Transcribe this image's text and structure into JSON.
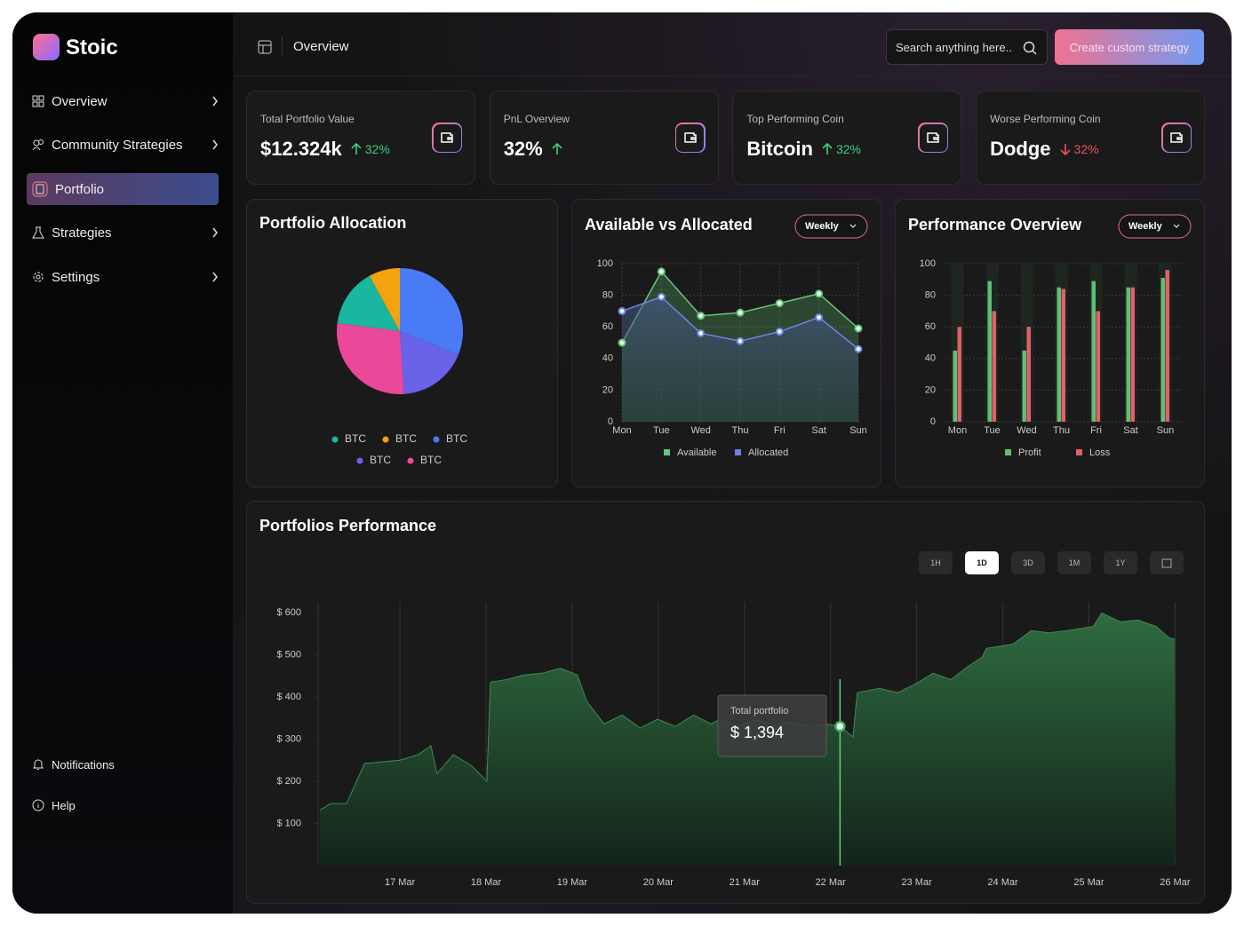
{
  "sidebar": {
    "brand": "Stoic",
    "nav": [
      "Overview",
      "Community Strategies",
      "Portfolio",
      "Strategies",
      "Settings"
    ],
    "bottom": [
      "Notifications",
      "Help"
    ]
  },
  "header": {
    "title": "Overview",
    "search": "Search anything here..",
    "button": "Create custom strategy"
  },
  "stats": [
    {
      "label": "Total Portfolio Value",
      "value": "$12.324k",
      "change": "32%"
    },
    {
      "label": "PnL Overview",
      "value": "32%"
    },
    {
      "label": "Top Performing Coin",
      "value": "Bitcoin",
      "change": "32%"
    },
    {
      "label": "Worse Performing Coin",
      "value": "Dodge",
      "change": "32%"
    }
  ],
  "performance_controls": [
    "1H",
    "1D",
    "3D",
    "1M",
    "1Y"
  ],
  "chart_data": [
    {
      "type": "pie",
      "title": "Portfolio Allocation",
      "categories": [
        "BTC",
        "BTC",
        "BTC",
        "BTC",
        "BTC"
      ],
      "values": [
        15,
        8,
        31,
        18,
        28
      ],
      "colors": [
        "#19b6a0",
        "#f5a20f",
        "#4a7bf7",
        "#6a63ea",
        "#ec4899"
      ]
    },
    {
      "type": "line",
      "title": "Available vs Allocated",
      "filter": "Weekly",
      "categories": [
        "Mon",
        "Tue",
        "Wed",
        "Thu",
        "Fri",
        "Sat",
        "Sun"
      ],
      "series": [
        {
          "name": "Available",
          "color": "#6cc47a",
          "values": [
            50,
            95,
            67,
            69,
            75,
            81,
            59
          ]
        },
        {
          "name": "Allocated",
          "color": "#7080e8",
          "values": [
            70,
            79,
            56,
            51,
            57,
            66,
            46
          ]
        }
      ],
      "ylim": [
        0,
        100
      ],
      "yticks": [
        0,
        20,
        40,
        60,
        80,
        100
      ],
      "grid": true
    },
    {
      "type": "bar",
      "title": "Performance Overview",
      "filter": "Weekly",
      "categories": [
        "Mon",
        "Tue",
        "Wed",
        "Thu",
        "Fri",
        "Sat",
        "Sun"
      ],
      "series": [
        {
          "name": "Profit",
          "color": "#5fbf75",
          "values": [
            45,
            89,
            45,
            85,
            89,
            85,
            91
          ]
        },
        {
          "name": "Loss",
          "color": "#e2606a",
          "values": [
            60,
            70,
            60,
            84,
            70,
            85,
            96
          ]
        }
      ],
      "ylim": [
        0,
        100
      ],
      "yticks": [
        0,
        20,
        40,
        60,
        80,
        100
      ],
      "grid": true
    },
    {
      "type": "area",
      "title": "Portfolios Performance",
      "color": "#2f6b40",
      "x": [
        16.07,
        16.2,
        16.38,
        16.59,
        16.79,
        17.0,
        17.21,
        17.36,
        17.43,
        17.62,
        17.83,
        18.01,
        18.05,
        18.24,
        18.44,
        18.65,
        18.86,
        19.06,
        19.17,
        19.37,
        19.58,
        19.79,
        19.99,
        20.2,
        20.41,
        20.61,
        20.72,
        20.92,
        21.13,
        21.33,
        21.54,
        21.75,
        21.95,
        22.11,
        22.26,
        22.31,
        22.57,
        22.78,
        22.99,
        23.19,
        23.4,
        23.6,
        23.76,
        23.81,
        24.12,
        24.33,
        24.53,
        24.74,
        25.05,
        25.15,
        25.36,
        25.57,
        25.78,
        25.93,
        26.0
      ],
      "values": [
        132,
        147,
        147,
        242,
        246,
        250,
        263,
        284,
        218,
        263,
        237,
        200,
        435,
        441,
        452,
        456,
        468,
        452,
        389,
        336,
        357,
        326,
        347,
        330,
        357,
        336,
        347,
        330,
        345,
        335,
        340,
        330,
        336,
        330,
        305,
        410,
        420,
        410,
        431,
        456,
        441,
        473,
        494,
        515,
        525,
        557,
        552,
        557,
        567,
        599,
        578,
        582,
        567,
        540,
        536
      ],
      "xlim": [
        16.05,
        26.13
      ],
      "xticks": [
        {
          "value": 17,
          "label": "17 Mar"
        },
        {
          "value": 18,
          "label": "18 Mar"
        },
        {
          "value": 19,
          "label": "19 Mar"
        },
        {
          "value": 20,
          "label": "20 Mar"
        },
        {
          "value": 21,
          "label": "21 Mar"
        },
        {
          "value": 22,
          "label": "22 Mar"
        },
        {
          "value": 23,
          "label": "23 Mar"
        },
        {
          "value": 24,
          "label": "24 Mar"
        },
        {
          "value": 25,
          "label": "25 Mar"
        },
        {
          "value": 26,
          "label": "26 Mar"
        }
      ],
      "ylim": [
        0,
        625
      ],
      "yticks": [
        {
          "value": 100,
          "label": "$ 100"
        },
        {
          "value": 200,
          "label": "$ 200"
        },
        {
          "value": 300,
          "label": "$ 300"
        },
        {
          "value": 400,
          "label": "$ 400"
        },
        {
          "value": 500,
          "label": "$ 500"
        },
        {
          "value": 600,
          "label": "$ 600"
        }
      ],
      "tooltip": {
        "label": "Total portfolio",
        "value": "$ 1,394"
      }
    }
  ]
}
